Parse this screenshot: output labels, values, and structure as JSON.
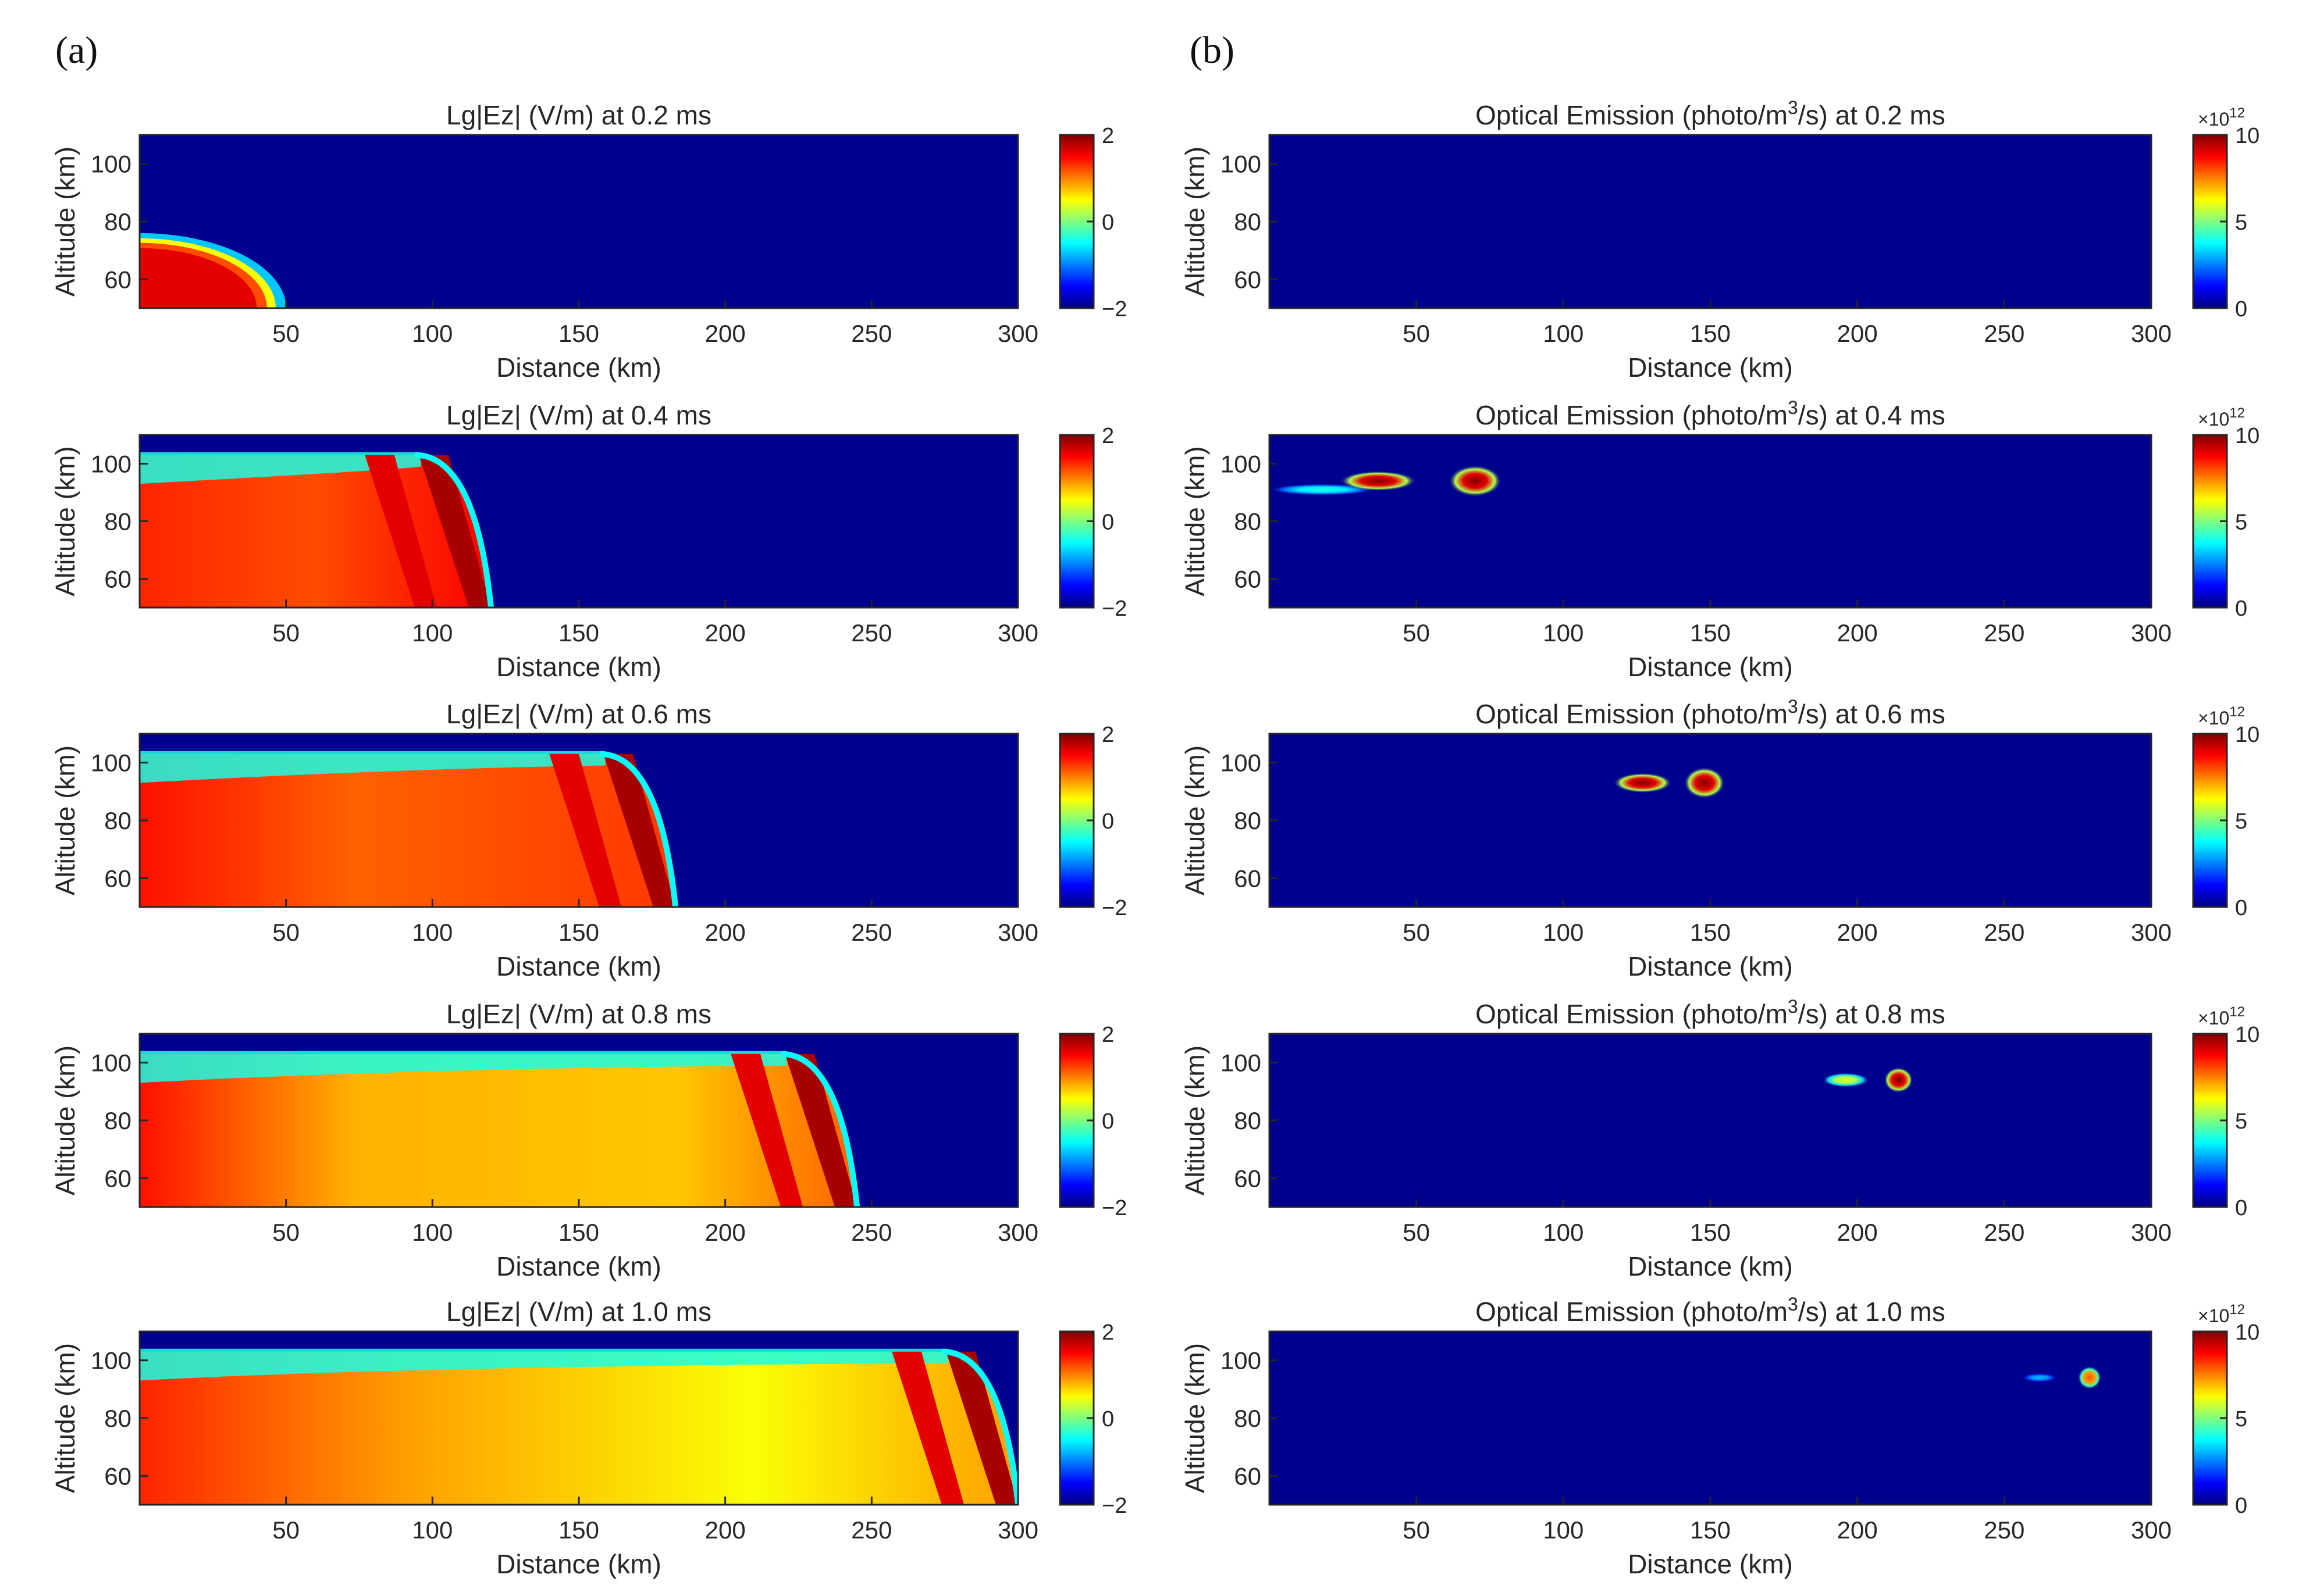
{
  "panel_labels": [
    "(a)",
    "(b)"
  ],
  "colors": {
    "background": "#00008F",
    "jet": [
      "#00007F",
      "#0000FF",
      "#007FFF",
      "#00FFFF",
      "#7FFF7F",
      "#FFFF00",
      "#FF7F00",
      "#FF0000",
      "#7F0000"
    ],
    "axis": "#262626"
  },
  "chart_data": [
    {
      "panel": "a",
      "type": "heatmap",
      "title": "Lg|Ez| (V/m) at 0.2 ms",
      "xlabel": "Distance (km)",
      "ylabel": "Altitude (km)",
      "xlim": [
        0,
        300
      ],
      "ylim": [
        50,
        110
      ],
      "xticks": [
        "50",
        "100",
        "150",
        "200",
        "250",
        "300"
      ],
      "yticks": [
        "60",
        "80",
        "100"
      ],
      "colorbar": {
        "ticks": [
          "2",
          "0",
          "−2"
        ],
        "clim": [
          -2,
          2
        ],
        "multiplier": ""
      },
      "front_km": 50,
      "features": [
        {
          "desc": "hemispherical wavefront",
          "x": [
            0,
            50
          ],
          "y": [
            50,
            75
          ],
          "value": 1.6
        }
      ]
    },
    {
      "panel": "a",
      "type": "heatmap",
      "title": "Lg|Ez| (V/m) at 0.4 ms",
      "xlabel": "Distance (km)",
      "ylabel": "Altitude (km)",
      "xlim": [
        0,
        300
      ],
      "ylim": [
        50,
        110
      ],
      "xticks": [
        "50",
        "100",
        "150",
        "200",
        "250",
        "300"
      ],
      "yticks": [
        "60",
        "80",
        "100"
      ],
      "colorbar": {
        "ticks": [
          "2",
          "0",
          "−2"
        ],
        "clim": [
          -2,
          2
        ],
        "multiplier": ""
      },
      "front_km": 120,
      "features": [
        {
          "desc": "wavefront with ionospheric reflection",
          "x": [
            0,
            120
          ],
          "y": [
            50,
            102
          ],
          "value": 1.4
        }
      ]
    },
    {
      "panel": "a",
      "type": "heatmap",
      "title": "Lg|Ez| (V/m) at 0.6 ms",
      "xlabel": "Distance (km)",
      "ylabel": "Altitude (km)",
      "xlim": [
        0,
        300
      ],
      "ylim": [
        50,
        110
      ],
      "xticks": [
        "50",
        "100",
        "150",
        "200",
        "250",
        "300"
      ],
      "yticks": [
        "60",
        "80",
        "100"
      ],
      "colorbar": {
        "ticks": [
          "2",
          "0",
          "−2"
        ],
        "clim": [
          -2,
          2
        ],
        "multiplier": ""
      },
      "front_km": 183,
      "features": [
        {
          "desc": "waveguide field",
          "x": [
            0,
            183
          ],
          "y": [
            50,
            103
          ],
          "value": 1.2
        }
      ]
    },
    {
      "panel": "a",
      "type": "heatmap",
      "title": "Lg|Ez| (V/m) at 0.8 ms",
      "xlabel": "Distance (km)",
      "ylabel": "Altitude (km)",
      "xlim": [
        0,
        300
      ],
      "ylim": [
        50,
        110
      ],
      "xticks": [
        "50",
        "100",
        "150",
        "200",
        "250",
        "300"
      ],
      "yticks": [
        "60",
        "80",
        "100"
      ],
      "colorbar": {
        "ticks": [
          "2",
          "0",
          "−2"
        ],
        "clim": [
          -2,
          2
        ],
        "multiplier": ""
      },
      "front_km": 245,
      "features": [
        {
          "desc": "waveguide field",
          "x": [
            0,
            245
          ],
          "y": [
            50,
            103
          ],
          "value": 0.7
        }
      ]
    },
    {
      "panel": "a",
      "type": "heatmap",
      "title": "Lg|Ez| (V/m) at 1.0 ms",
      "xlabel": "Distance (km)",
      "ylabel": "Altitude (km)",
      "xlim": [
        0,
        300
      ],
      "ylim": [
        50,
        110
      ],
      "xticks": [
        "50",
        "100",
        "150",
        "200",
        "250",
        "300"
      ],
      "yticks": [
        "60",
        "80",
        "100"
      ],
      "colorbar": {
        "ticks": [
          "2",
          "0",
          "−2"
        ],
        "clim": [
          -2,
          2
        ],
        "multiplier": ""
      },
      "front_km": 300,
      "features": [
        {
          "desc": "waveguide field",
          "x": [
            0,
            300
          ],
          "y": [
            50,
            103
          ],
          "value": 0.5
        }
      ]
    },
    {
      "panel": "b",
      "type": "heatmap",
      "title_pre": "Optical Emission (photo/m",
      "title_sup": "3",
      "title_post": "/s) at 0.2 ms",
      "xlabel": "Distance (km)",
      "ylabel": "Altitude (km)",
      "xlim": [
        0,
        300
      ],
      "ylim": [
        50,
        110
      ],
      "xticks": [
        "50",
        "100",
        "150",
        "200",
        "250",
        "300"
      ],
      "yticks": [
        "60",
        "80",
        "100"
      ],
      "colorbar": {
        "ticks": [
          "10",
          "5",
          "0"
        ],
        "clim": [
          0,
          10
        ],
        "multiplier": "×10",
        "multiplier_exp": "12"
      },
      "blobs": []
    },
    {
      "panel": "b",
      "type": "heatmap",
      "title_pre": "Optical Emission (photo/m",
      "title_sup": "3",
      "title_post": "/s) at 0.4 ms",
      "xlabel": "Distance (km)",
      "ylabel": "Altitude (km)",
      "xlim": [
        0,
        300
      ],
      "ylim": [
        50,
        110
      ],
      "xticks": [
        "50",
        "100",
        "150",
        "200",
        "250",
        "300"
      ],
      "yticks": [
        "60",
        "80",
        "100"
      ],
      "colorbar": {
        "ticks": [
          "10",
          "5",
          "0"
        ],
        "clim": [
          0,
          10
        ],
        "multiplier": "×10",
        "multiplier_exp": "12"
      },
      "blobs": [
        {
          "x": 18,
          "y": 91,
          "rx_km": 18,
          "ry_km": 2,
          "peak": 4
        },
        {
          "x": 37,
          "y": 94,
          "rx_km": 13,
          "ry_km": 3.5,
          "peak": 10
        },
        {
          "x": 70,
          "y": 94,
          "rx_km": 9,
          "ry_km": 5.5,
          "peak": 10
        }
      ]
    },
    {
      "panel": "b",
      "type": "heatmap",
      "title_pre": "Optical Emission (photo/m",
      "title_sup": "3",
      "title_post": "/s) at 0.6 ms",
      "xlabel": "Distance (km)",
      "ylabel": "Altitude (km)",
      "xlim": [
        0,
        300
      ],
      "ylim": [
        50,
        110
      ],
      "xticks": [
        "50",
        "100",
        "150",
        "200",
        "250",
        "300"
      ],
      "yticks": [
        "60",
        "80",
        "100"
      ],
      "colorbar": {
        "ticks": [
          "10",
          "5",
          "0"
        ],
        "clim": [
          0,
          10
        ],
        "multiplier": "×10",
        "multiplier_exp": "12"
      },
      "blobs": [
        {
          "x": 127,
          "y": 93,
          "rx_km": 10,
          "ry_km": 3.5,
          "peak": 10
        },
        {
          "x": 148,
          "y": 93,
          "rx_km": 7,
          "ry_km": 5.5,
          "peak": 10
        }
      ]
    },
    {
      "panel": "b",
      "type": "heatmap",
      "title_pre": "Optical Emission (photo/m",
      "title_sup": "3",
      "title_post": "/s) at 0.8 ms",
      "xlabel": "Distance (km)",
      "ylabel": "Altitude (km)",
      "xlim": [
        0,
        300
      ],
      "ylim": [
        50,
        110
      ],
      "xticks": [
        "50",
        "100",
        "150",
        "200",
        "250",
        "300"
      ],
      "yticks": [
        "60",
        "80",
        "100"
      ],
      "colorbar": {
        "ticks": [
          "10",
          "5",
          "0"
        ],
        "clim": [
          0,
          10
        ],
        "multiplier": "×10",
        "multiplier_exp": "12"
      },
      "blobs": [
        {
          "x": 196,
          "y": 94,
          "rx_km": 8,
          "ry_km": 2.5,
          "peak": 6
        },
        {
          "x": 214,
          "y": 94,
          "rx_km": 5,
          "ry_km": 4.5,
          "peak": 10
        }
      ]
    },
    {
      "panel": "b",
      "type": "heatmap",
      "title_pre": "Optical Emission (photo/m",
      "title_sup": "3",
      "title_post": "/s) at 1.0 ms",
      "xlabel": "Distance (km)",
      "ylabel": "Altitude (km)",
      "xlim": [
        0,
        300
      ],
      "ylim": [
        50,
        110
      ],
      "xticks": [
        "50",
        "100",
        "150",
        "200",
        "250",
        "300"
      ],
      "yticks": [
        "60",
        "80",
        "100"
      ],
      "colorbar": {
        "ticks": [
          "10",
          "5",
          "0"
        ],
        "clim": [
          0,
          10
        ],
        "multiplier": "×10",
        "multiplier_exp": "12"
      },
      "blobs": [
        {
          "x": 262,
          "y": 94,
          "rx_km": 6,
          "ry_km": 1.5,
          "peak": 3
        },
        {
          "x": 279,
          "y": 94,
          "rx_km": 4,
          "ry_km": 4,
          "peak": 8
        }
      ]
    }
  ]
}
